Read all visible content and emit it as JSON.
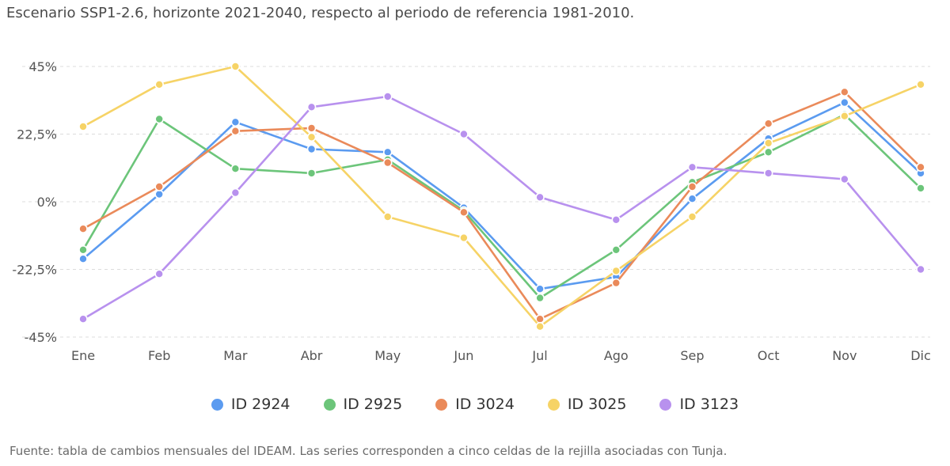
{
  "title": "Escenario SSP1-2.6, horizonte 2021-2040, respecto al periodo de referencia 1981-2010.",
  "source": "Fuente: tabla de cambios mensuales del IDEAM. Las series corresponden a cinco celdas de la rejilla asociadas con Tunja.",
  "chart_data": {
    "type": "line",
    "categories": [
      "Ene",
      "Feb",
      "Mar",
      "Abr",
      "May",
      "Jun",
      "Jul",
      "Ago",
      "Sep",
      "Oct",
      "Nov",
      "Dic"
    ],
    "ylim": [
      -45,
      45
    ],
    "yticks": [
      -45,
      -22.5,
      0,
      22.5,
      45
    ],
    "ytick_labels": [
      "-45%",
      "-22,5%",
      "0%",
      "22,5%",
      "45%"
    ],
    "grid": true,
    "legend_position": "bottom",
    "series": [
      {
        "name": "ID 2924",
        "color": "#5b9bf0",
        "values": [
          -19,
          2.5,
          26.5,
          17.5,
          16.5,
          -2,
          -29,
          -25,
          1,
          21,
          33,
          9.5
        ]
      },
      {
        "name": "ID 2925",
        "color": "#6cc57a",
        "values": [
          -16,
          27.5,
          11,
          9.5,
          14,
          -3,
          -32,
          -16,
          6.5,
          16.5,
          29,
          4.5
        ]
      },
      {
        "name": "ID 3024",
        "color": "#ea8a5a",
        "values": [
          -9,
          5,
          23.5,
          24.5,
          13,
          -3.5,
          -39,
          -27,
          5,
          26,
          36.5,
          11.5
        ]
      },
      {
        "name": "ID 3025",
        "color": "#f6d366",
        "values": [
          25,
          39,
          45,
          21.5,
          -5,
          -12,
          -41.5,
          -23,
          -5,
          19.5,
          28.5,
          39
        ]
      },
      {
        "name": "ID 3123",
        "color": "#b891ee",
        "values": [
          -39,
          -24,
          3,
          31.5,
          35,
          22.5,
          1.5,
          -6,
          11.5,
          9.5,
          7.5,
          -22.5
        ]
      }
    ]
  }
}
